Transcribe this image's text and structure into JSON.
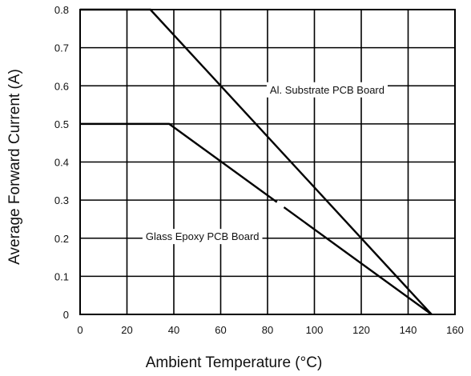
{
  "chart_data": {
    "type": "line",
    "xlabel": "Ambient Temperature (°C)",
    "ylabel": "Average Forward Current (A)",
    "xlim": [
      0,
      160
    ],
    "ylim": [
      0,
      0.8
    ],
    "x_ticks": [
      "0",
      "20",
      "40",
      "60",
      "80",
      "100",
      "120",
      "140",
      "160"
    ],
    "y_ticks": [
      "0",
      "0.1",
      "0.2",
      "0.3",
      "0.4",
      "0.5",
      "0.6",
      "0.7",
      "0.8"
    ],
    "grid": true,
    "series": [
      {
        "name": "Al. Substrate PCB Board",
        "x": [
          0,
          30,
          150
        ],
        "y": [
          0.8,
          0.8,
          0
        ]
      },
      {
        "name": "Glass Epoxy PCB Board",
        "x": [
          0,
          38,
          150
        ],
        "y": [
          0.5,
          0.5,
          0
        ]
      }
    ],
    "annotations": [
      {
        "text": "Al. Substrate PCB Board",
        "series": 0
      },
      {
        "text": "Glass Epoxy PCB Board",
        "series": 1
      }
    ]
  }
}
